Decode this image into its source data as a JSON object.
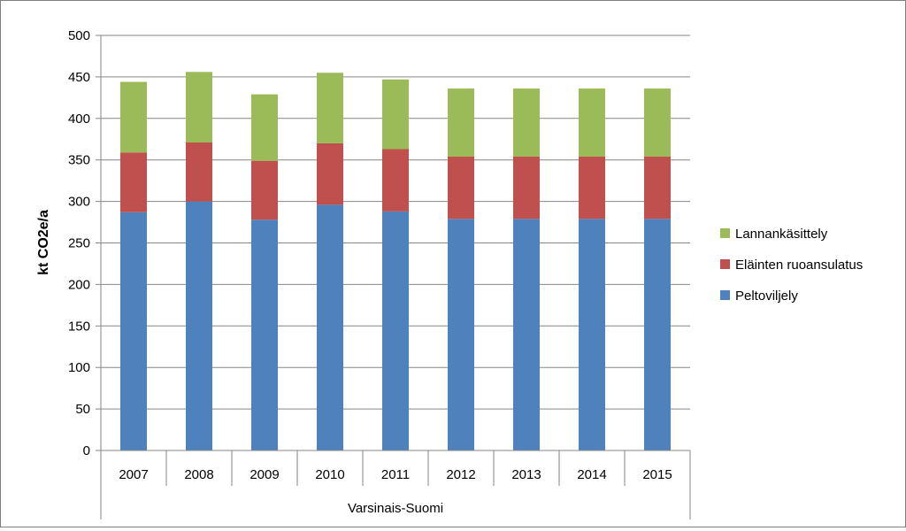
{
  "chart_data": {
    "type": "bar",
    "stacked": true,
    "title": "",
    "ylabel": "kt CO2e/a",
    "group_label": "Varsinais-Suomi",
    "categories": [
      "2007",
      "2008",
      "2009",
      "2010",
      "2011",
      "2012",
      "2013",
      "2014",
      "2015"
    ],
    "ylim": [
      0,
      500
    ],
    "yticks": [
      "0",
      "50",
      "100",
      "150",
      "200",
      "250",
      "300",
      "350",
      "400",
      "450",
      "500"
    ],
    "grid": true,
    "legend_position": "right",
    "series": [
      {
        "name": "Peltoviljely",
        "color": "#4f81bd",
        "values": [
          287,
          300,
          278,
          296,
          288,
          279,
          279,
          279,
          279
        ]
      },
      {
        "name": "Eläinten ruoansulatus",
        "color": "#c0504d",
        "values": [
          72,
          71,
          71,
          74,
          75,
          75,
          75,
          75,
          75
        ]
      },
      {
        "name": "Lannankäsittely",
        "color": "#9bbb59",
        "values": [
          85,
          85,
          80,
          85,
          84,
          82,
          82,
          82,
          82
        ]
      }
    ]
  }
}
